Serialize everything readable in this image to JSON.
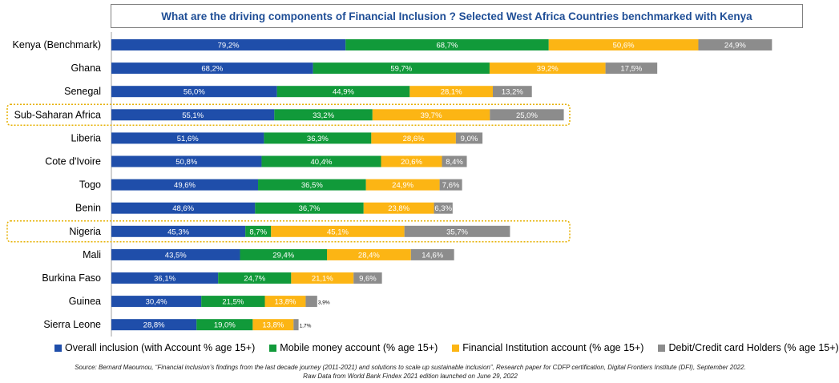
{
  "chart_data": {
    "type": "bar",
    "orientation": "horizontal",
    "stacked": true,
    "title": "What are the driving components of Financial Inclusion ? Selected West Africa Countries benchmarked with Kenya",
    "categories": [
      "Kenya (Benchmark)",
      "Ghana",
      "Senegal",
      "Sub-Saharan Africa",
      "Liberia",
      "Cote d'Ivoire",
      "Togo",
      "Benin",
      "Nigeria",
      "Mali",
      "Burkina Faso",
      "Guinea",
      "Sierra Leone"
    ],
    "highlighted": [
      "Sub-Saharan Africa",
      "Nigeria"
    ],
    "series": [
      {
        "name": "Overall inclusion (with Account % age 15+)",
        "color": "#1f4eaa",
        "values": [
          79.2,
          68.2,
          56.0,
          55.1,
          51.6,
          50.8,
          49.6,
          48.6,
          45.3,
          43.5,
          36.1,
          30.4,
          28.8
        ],
        "labels": [
          "79,2%",
          "68,2%",
          "56,0%",
          "55,1%",
          "51,6%",
          "50,8%",
          "49,6%",
          "48,6%",
          "45,3%",
          "43,5%",
          "36,1%",
          "30,4%",
          "28,8%"
        ]
      },
      {
        "name": "Mobile money account (% age 15+)",
        "color": "#119a3a",
        "values": [
          68.7,
          59.7,
          44.9,
          33.2,
          36.3,
          40.4,
          36.5,
          36.7,
          8.7,
          29.4,
          24.7,
          21.5,
          19.0
        ],
        "labels": [
          "68,7%",
          "59,7%",
          "44,9%",
          "33,2%",
          "36,3%",
          "40,4%",
          "36,5%",
          "36,7%",
          "8,7%",
          "29,4%",
          "24,7%",
          "21,5%",
          "19,0%"
        ]
      },
      {
        "name": "Financial Institution account (% age 15+)",
        "color": "#fcb514",
        "values": [
          50.6,
          39.2,
          28.1,
          39.7,
          28.6,
          20.6,
          24.9,
          23.8,
          45.1,
          28.4,
          21.1,
          13.8,
          13.8
        ],
        "labels": [
          "50,6%",
          "39,2%",
          "28,1%",
          "39,7%",
          "28,6%",
          "20,6%",
          "24,9%",
          "23,8%",
          "45,1%",
          "28,4%",
          "21,1%",
          "13,8%",
          "13,8%"
        ]
      },
      {
        "name": "Debit/Credit card Holders (% age 15+)",
        "color": "#8c8c8c",
        "values": [
          24.9,
          17.5,
          13.2,
          25.0,
          9.0,
          8.4,
          7.6,
          6.3,
          35.7,
          14.6,
          9.6,
          3.9,
          1.7
        ],
        "labels": [
          "24,9%",
          "17,5%",
          "13,2%",
          "25,0%",
          "9,0%",
          "8,4%",
          "7,6%",
          "6,3%",
          "35,7%",
          "14,6%",
          "9,6%",
          "3,9%",
          "1,7%"
        ]
      }
    ],
    "legend_position": "bottom",
    "grid": false
  },
  "source": {
    "line1": "Source: Bernard Maoumou, “Financial inclusion’s findings from the last decade journey (2011-2021) and solutions to scale up sustainable inclusion”, Research paper for CDFP certification, Digital Frontiers Institute (DFI), September 2022.",
    "line2": "Raw Data from World Bank Findex 2021 edition launched on June 29, 2022"
  }
}
